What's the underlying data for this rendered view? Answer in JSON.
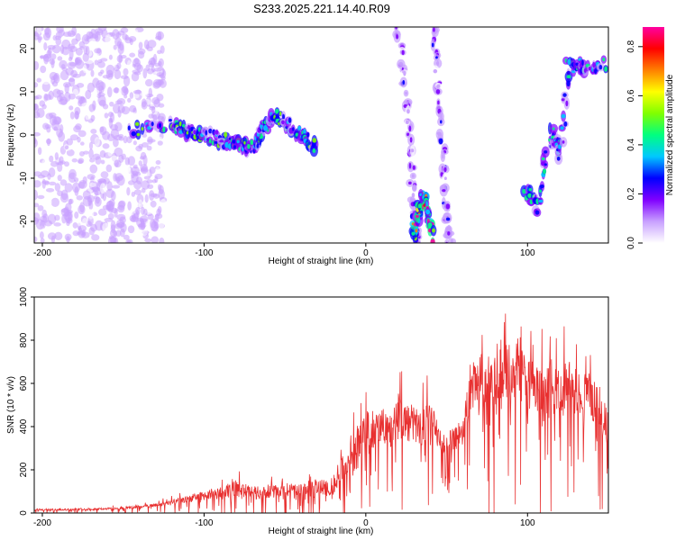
{
  "title": "S233.2025.221.14.40.R09",
  "chart_data": [
    {
      "type": "heatmap",
      "title": "S233.2025.221.14.40.R09",
      "xlabel": "Height of straight line (km)",
      "ylabel": "Frequency (Hz)",
      "xlim": [
        -205,
        150
      ],
      "ylim": [
        -25,
        25
      ],
      "xticks": [
        -200,
        -100,
        0,
        100
      ],
      "yticks": [
        -20,
        -10,
        0,
        10,
        20
      ],
      "colorbar": {
        "label": "Normalized spectral amplitude",
        "range": [
          0,
          0.88
        ],
        "ticks": [
          0.0,
          0.2,
          0.4,
          0.6,
          0.8
        ],
        "colors": [
          "#ffffff",
          "#c8a0ff",
          "#8000ff",
          "#0000ff",
          "#00c8ff",
          "#00ff80",
          "#80ff00",
          "#ffff00",
          "#ff8000",
          "#ff0000",
          "#ff00a0"
        ]
      },
      "features": [
        {
          "name": "diffuse noise",
          "x_range": [
            -205,
            -125
          ],
          "f_range": [
            -25,
            25
          ],
          "amplitude": 0.1
        },
        {
          "name": "drifting band",
          "points": [
            [
              -145,
              1
            ],
            [
              -120,
              2
            ],
            [
              -110,
              1
            ],
            [
              -100,
              0
            ],
            [
              -90,
              -1
            ],
            [
              -80,
              -2
            ],
            [
              -72,
              -3
            ],
            [
              -65,
              0
            ],
            [
              -58,
              5
            ],
            [
              -50,
              3
            ],
            [
              -40,
              0
            ],
            [
              -30,
              -3
            ]
          ],
          "amplitude": 0.35
        },
        {
          "name": "arch-left",
          "points": [
            [
              20,
              25
            ],
            [
              25,
              10
            ],
            [
              28,
              -5
            ],
            [
              30,
              -20
            ],
            [
              32,
              -25
            ]
          ],
          "amplitude": 0.15
        },
        {
          "name": "arch-right",
          "points": [
            [
              42,
              25
            ],
            [
              45,
              10
            ],
            [
              48,
              -5
            ],
            [
              50,
              -20
            ],
            [
              52,
              -25
            ]
          ],
          "amplitude": 0.15
        },
        {
          "name": "peak",
          "points": [
            [
              30,
              -24
            ],
            [
              33,
              -18
            ],
            [
              35,
              -14
            ],
            [
              38,
              -18
            ],
            [
              41,
              -24
            ]
          ],
          "amplitude": 0.6
        },
        {
          "name": "right cluster",
          "points": [
            [
              98,
              -12
            ],
            [
              106,
              -17
            ],
            [
              115,
              1
            ],
            [
              120,
              -5
            ],
            [
              125,
              16
            ],
            [
              135,
              16
            ],
            [
              148,
              16
            ]
          ],
          "amplitude": 0.3
        }
      ]
    },
    {
      "type": "line",
      "xlabel": "Height of straight line (km)",
      "ylabel": "SNR (10 * v/v)",
      "xlim": [
        -205,
        150
      ],
      "ylim": [
        0,
        1000
      ],
      "xticks": [
        -200,
        -100,
        0,
        100
      ],
      "yticks": [
        0,
        200,
        400,
        600,
        800,
        1000
      ],
      "series": [
        {
          "name": "SNR",
          "color": "#e83030",
          "x": [
            -205,
            -190,
            -175,
            -160,
            -145,
            -130,
            -120,
            -110,
            -100,
            -90,
            -80,
            -70,
            -60,
            -50,
            -40,
            -30,
            -20,
            -15,
            -10,
            -5,
            0,
            5,
            10,
            15,
            20,
            25,
            30,
            35,
            40,
            45,
            50,
            55,
            60,
            65,
            70,
            75,
            80,
            85,
            90,
            95,
            100,
            105,
            110,
            115,
            120,
            125,
            130,
            135,
            140,
            145,
            150
          ],
          "y": [
            15,
            15,
            18,
            20,
            25,
            35,
            50,
            65,
            80,
            100,
            110,
            95,
            100,
            110,
            100,
            120,
            110,
            200,
            280,
            330,
            400,
            380,
            420,
            390,
            440,
            420,
            410,
            390,
            460,
            340,
            310,
            350,
            380,
            560,
            620,
            600,
            580,
            680,
            630,
            700,
            600,
            560,
            520,
            590,
            530,
            600,
            580,
            560,
            540,
            480,
            380
          ],
          "noise": [
            12,
            12,
            14,
            15,
            18,
            25,
            35,
            50,
            60,
            80,
            110,
            90,
            95,
            100,
            95,
            110,
            100,
            150,
            200,
            230,
            260,
            250,
            260,
            260,
            280,
            270,
            260,
            250,
            260,
            160,
            150,
            170,
            160,
            350,
            380,
            380,
            400,
            420,
            420,
            380,
            380,
            370,
            360,
            360,
            350,
            350,
            330,
            330,
            320,
            300,
            220
          ]
        }
      ]
    }
  ]
}
